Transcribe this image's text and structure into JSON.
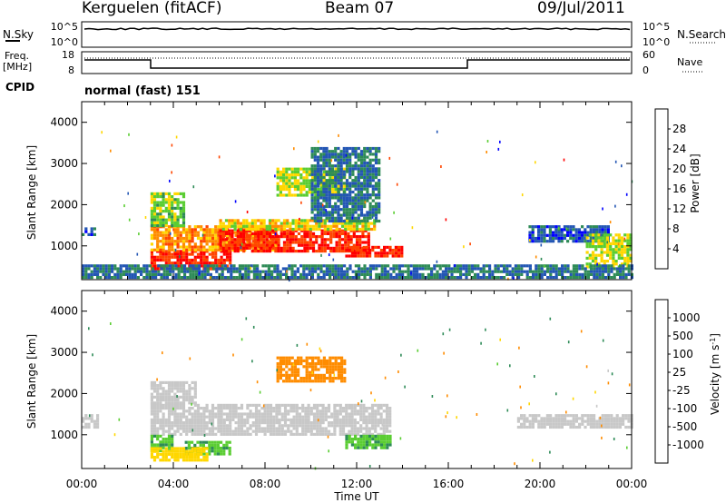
{
  "header": {
    "station": "Kerguelen (fitACF)",
    "beam": "Beam 07",
    "date": "09/Jul/2011"
  },
  "noise_panel": {
    "left_label": "N.Sky",
    "right_label": "N.Search",
    "left_ticks": [
      "10^5",
      "10^0"
    ],
    "right_ticks": [
      "10^5",
      "10^0"
    ]
  },
  "freq_panel": {
    "left_label_1": "Freq.",
    "left_label_2": "[MHz]",
    "right_label": "Nave",
    "left_ticks": [
      "18",
      "8"
    ],
    "right_ticks": [
      "60",
      "0"
    ],
    "cpid_label": "CPID",
    "cpid_value": "normal (fast) 151"
  },
  "chart_data": [
    {
      "type": "heatmap",
      "title": "",
      "xlabel": "Time UT",
      "ylabel": "Slant Range [km]",
      "x_ticks": [
        "00:00",
        "04:00",
        "08:00",
        "12:00",
        "16:00",
        "20:00",
        "00:00"
      ],
      "x_range_hours": [
        0,
        24
      ],
      "y_ticks": [
        1000,
        2000,
        3000,
        4000
      ],
      "ylim": [
        180,
        4500
      ],
      "colorbar_label": "Power [dB]",
      "colorbar_ticks": [
        "28",
        "24",
        "20",
        "16",
        "12",
        "8",
        "4"
      ],
      "colorbar_range": [
        0,
        32
      ],
      "colorbar_colors": [
        "#0000ff",
        "#2356b4",
        "#2e8b57",
        "#5acd32",
        "#ffd700",
        "#ff8c00",
        "#ff4500",
        "#ff0000"
      ],
      "regions": [
        {
          "t0": 3.0,
          "t1": 6.5,
          "r0": 450,
          "r1": 900,
          "value": 28
        },
        {
          "t0": 3.0,
          "t1": 8.5,
          "r0": 900,
          "r1": 1500,
          "value": 22
        },
        {
          "t0": 3.0,
          "t1": 4.5,
          "r0": 1500,
          "r1": 2300,
          "value": 14
        },
        {
          "t0": 6.0,
          "t1": 12.5,
          "r0": 900,
          "r1": 1400,
          "value": 28
        },
        {
          "t0": 6.0,
          "t1": 12.8,
          "r0": 1400,
          "r1": 1650,
          "value": 18
        },
        {
          "t0": 8.5,
          "t1": 11.5,
          "r0": 2200,
          "r1": 2900,
          "value": 16
        },
        {
          "t0": 10.0,
          "t1": 13.0,
          "r0": 1600,
          "r1": 3400,
          "value": 8
        },
        {
          "t0": 11.5,
          "t1": 14.0,
          "r0": 750,
          "r1": 1000,
          "value": 28
        },
        {
          "t0": 19.5,
          "t1": 23.0,
          "r0": 1100,
          "r1": 1500,
          "value": 6
        },
        {
          "t0": 22.0,
          "t1": 24.0,
          "r0": 500,
          "r1": 1300,
          "value": 16
        },
        {
          "t0": 0.0,
          "t1": 24.0,
          "r0": 200,
          "r1": 550,
          "value": 8
        },
        {
          "t0": 0.0,
          "t1": 0.6,
          "r0": 1250,
          "r1": 1450,
          "value": 6
        }
      ]
    },
    {
      "type": "heatmap",
      "title": "",
      "xlabel": "Time UT",
      "ylabel": "Slant Range [km]",
      "x_ticks": [
        "00:00",
        "04:00",
        "08:00",
        "12:00",
        "16:00",
        "20:00",
        "00:00"
      ],
      "x_range_hours": [
        0,
        24
      ],
      "y_ticks": [
        1000,
        2000,
        3000,
        4000
      ],
      "ylim": [
        180,
        4500
      ],
      "colorbar_label": "Velocity [m s",
      "colorbar_label_sup": "-1",
      "colorbar_label_end": "]",
      "colorbar_ticks": [
        "1000",
        "500",
        "100",
        "25",
        "-25",
        "-100",
        "-500",
        "-1000"
      ],
      "colorbar_colors": [
        "#0000ff",
        "#2356b4",
        "#2e8b57",
        "#5acd32",
        "#c8c8c8",
        "#ffd700",
        "#ff8c00",
        "#ff4500",
        "#ff0000"
      ],
      "regions": [
        {
          "t0": 3.0,
          "t1": 13.5,
          "r0": 1000,
          "r1": 1750,
          "value": 0
        },
        {
          "t0": 3.0,
          "t1": 5.0,
          "r0": 1750,
          "r1": 2300,
          "value": 0
        },
        {
          "t0": 3.0,
          "t1": 4.0,
          "r0": 600,
          "r1": 1000,
          "value": 80
        },
        {
          "t0": 4.5,
          "t1": 6.5,
          "r0": 500,
          "r1": 850,
          "value": 80
        },
        {
          "t0": 3.0,
          "t1": 5.5,
          "r0": 400,
          "r1": 700,
          "value": -60
        },
        {
          "t0": 11.5,
          "t1": 13.5,
          "r0": 700,
          "r1": 1000,
          "value": 80
        },
        {
          "t0": 8.5,
          "t1": 11.5,
          "r0": 2300,
          "r1": 2900,
          "value": -300
        },
        {
          "t0": 19.0,
          "t1": 24.0,
          "r0": 1200,
          "r1": 1500,
          "value": 0
        },
        {
          "t0": 0.0,
          "t1": 0.7,
          "r0": 1200,
          "r1": 1500,
          "value": 0
        }
      ]
    }
  ]
}
